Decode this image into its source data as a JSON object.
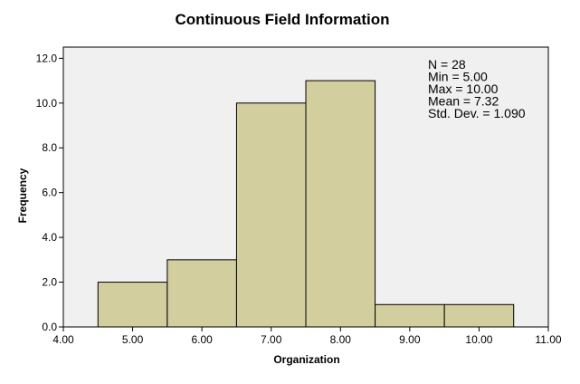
{
  "chart_data": {
    "type": "bar",
    "title": "Continuous Field Information",
    "xlabel": "Organization",
    "ylabel": "Frequency",
    "xlim": [
      4.0,
      11.0
    ],
    "ylim": [
      0,
      12.5
    ],
    "x_ticks": [
      "4.00",
      "5.00",
      "6.00",
      "7.00",
      "8.00",
      "9.00",
      "10.00",
      "11.00"
    ],
    "y_ticks": [
      "0.0",
      "2.0",
      "4.0",
      "6.0",
      "8.0",
      "10.0",
      "12.0"
    ],
    "bin_width": 1.0,
    "bins": [
      {
        "center": 5.0,
        "value": 2
      },
      {
        "center": 6.0,
        "value": 3
      },
      {
        "center": 7.0,
        "value": 10
      },
      {
        "center": 8.0,
        "value": 11
      },
      {
        "center": 9.0,
        "value": 1
      },
      {
        "center": 10.0,
        "value": 1
      }
    ],
    "stats": [
      "N = 28",
      "Min = 5.00",
      "Max = 10.00",
      "Mean = 7.32",
      "Std. Dev. = 1.090"
    ],
    "grid": false,
    "colors": {
      "plot_background": "#f0f0f0",
      "bar_fill": "#d3ce9e",
      "bar_stroke": "#000000",
      "axis": "#000000"
    }
  }
}
